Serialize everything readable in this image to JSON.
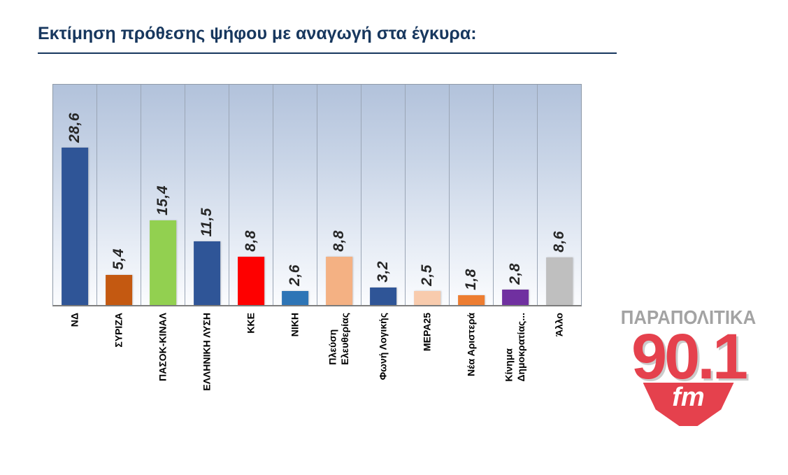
{
  "title": "Εκτίμηση πρόθεσης ψήφου με αναγωγή στα έγκυρα:",
  "chart_data": {
    "type": "bar",
    "title": "Εκτίμηση πρόθεσης ψήφου με αναγωγή στα έγκυρα:",
    "categories": [
      "ΝΔ",
      "ΣΥΡΙΖΑ",
      "ΠΑΣΟΚ-ΚΙΝΑΛ",
      "ΕΛΛΗΝΙΚΗ ΛΥΣΗ",
      "ΚΚΕ",
      "ΝΙΚΗ",
      "Πλεύση\nΕλευθερίας",
      "Φωνή Λογικής",
      "ΜΕΡΑ25",
      "Νέα Αριστερά",
      "Κίνημα\nΔημοκρατίας...",
      "Άλλο"
    ],
    "values": [
      28.6,
      5.4,
      15.4,
      11.5,
      8.8,
      2.6,
      8.8,
      3.2,
      2.5,
      1.8,
      2.8,
      8.6
    ],
    "value_labels": [
      "28,6",
      "5,4",
      "15,4",
      "11,5",
      "8,8",
      "2,6",
      "8,8",
      "3,2",
      "2,5",
      "1,8",
      "2,8",
      "8,6"
    ],
    "bar_colors": [
      "#2f5597",
      "#c45911",
      "#92d050",
      "#2f5597",
      "#fe0000",
      "#2e75b6",
      "#f4b183",
      "#2f5597",
      "#f8cbad",
      "#ed7d31",
      "#7030a0",
      "#bfbfbf"
    ],
    "xlabel": "",
    "ylabel": "",
    "ylim": [
      0,
      40
    ],
    "grid": "vertical-category-separators",
    "legend": "none",
    "value_label_style": "rotated-90-bold-italic",
    "category_label_style": "rotated-90-bold"
  },
  "logo": {
    "station": "ΠΑΡΑΠΟΛΙΤΙΚΑ",
    "frequency": "90.1",
    "band": "fm",
    "accent_color": "#e5414d",
    "station_color": "#a3a3a3"
  }
}
